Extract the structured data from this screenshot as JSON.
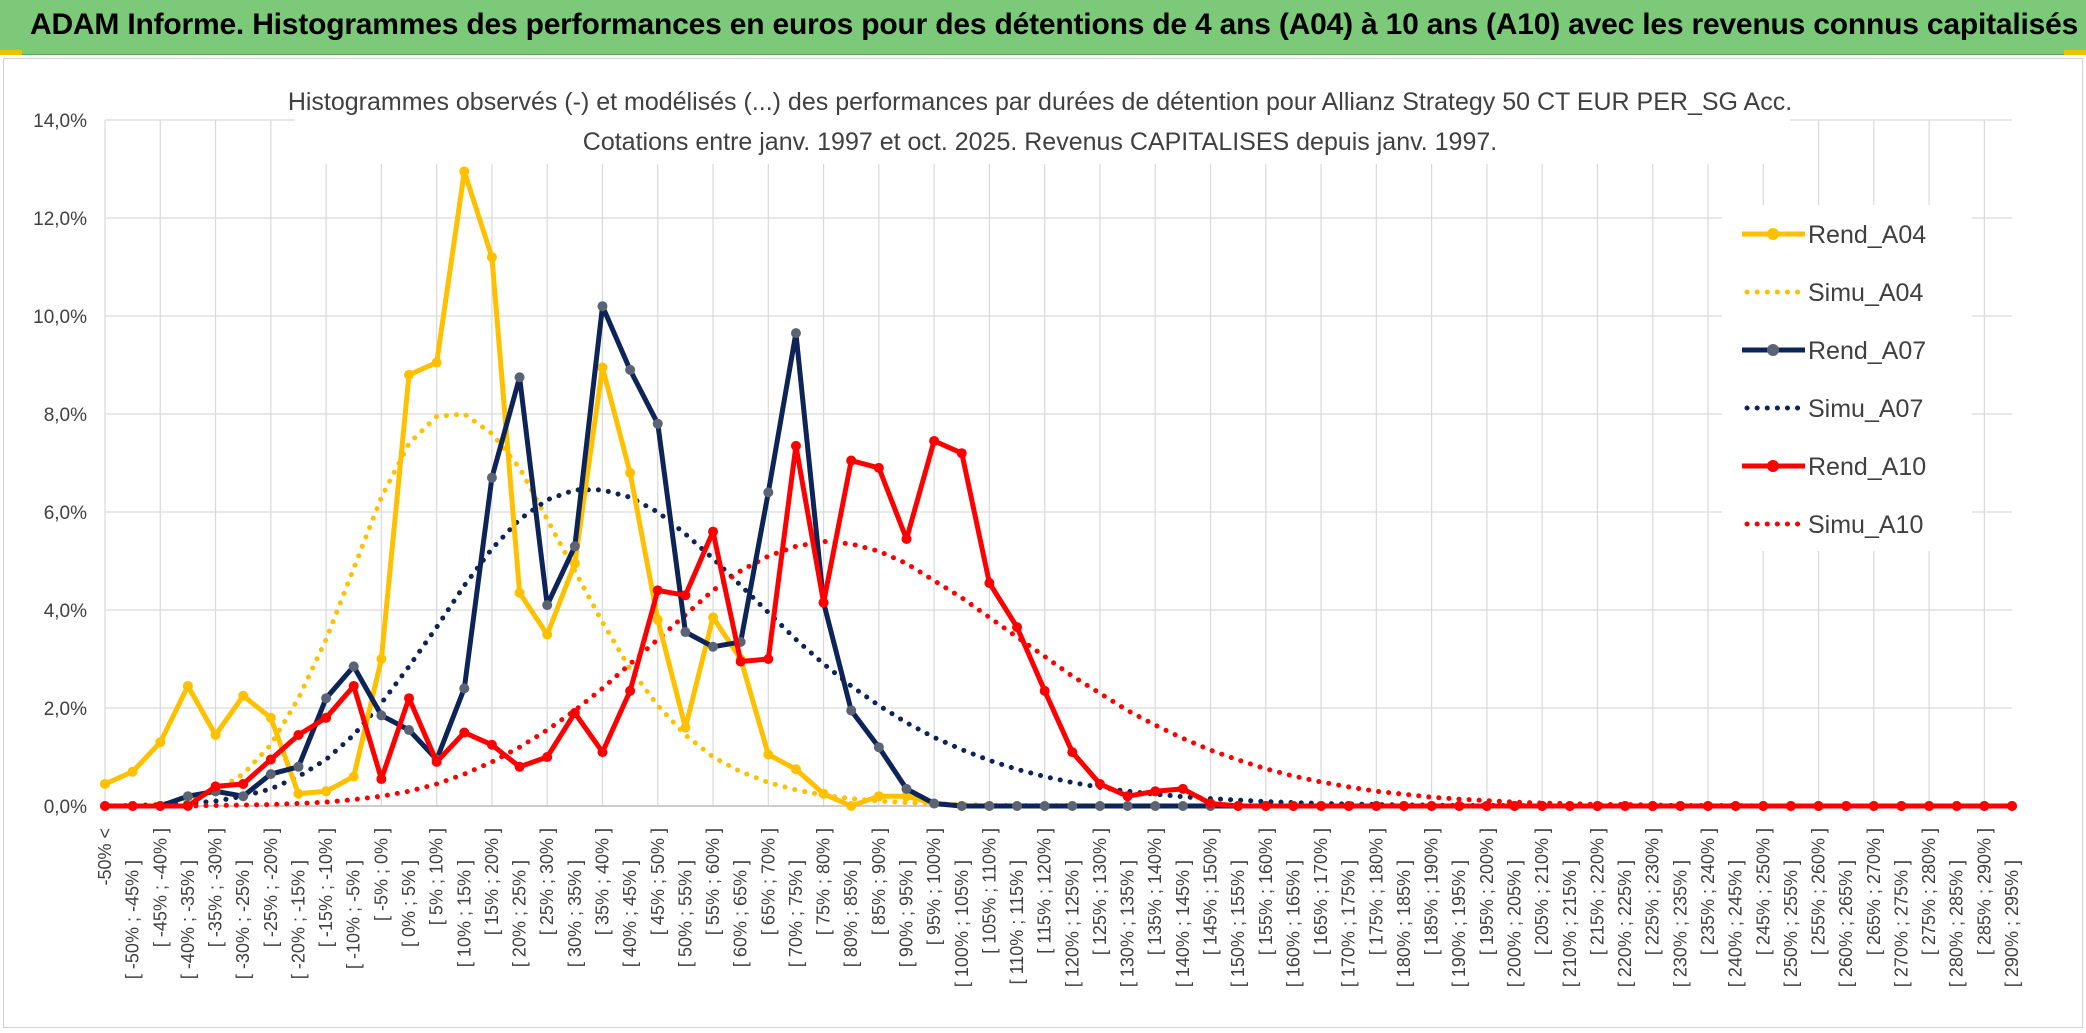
{
  "header": {
    "title": "ADAM Informe. Histogrammes des performances en euros pour des détentions de 4 ans (A04) à 10 ans (A10) avec les revenus connus capitalisés"
  },
  "chart_data": {
    "type": "line",
    "title": "Histogrammes observés (-) et modélisés (...) des performances par durées de détention pour Allianz Strategy 50 CT EUR PER_SG Acc.",
    "subtitle": "Cotations entre janv. 1997 et oct. 2025. Revenus CAPITALISES depuis janv. 1997.",
    "xlabel": "",
    "ylabel": "",
    "ylim": [
      0,
      14
    ],
    "yticks": [
      "0,0%",
      "2,0%",
      "4,0%",
      "6,0%",
      "8,0%",
      "10,0%",
      "12,0%",
      "14,0%"
    ],
    "grid": true,
    "legend_position": "right",
    "categories": [
      "-50% <",
      "[ -50% ; -45% ]",
      "[ -45% ; -40% ]",
      "[ -40% ; -35% ]",
      "[ -35% ; -30% ]",
      "[ -30% ; -25% ]",
      "[ -25% ; -20% ]",
      "[ -20% ; -15% ]",
      "[ -15% ; -10% ]",
      "[ -10% ; -5% ]",
      "[ -5% ; 0% ]",
      "[ 0% ; 5% ]",
      "[ 5% ; 10% ]",
      "[ 10% ; 15% ]",
      "[ 15% ; 20% ]",
      "[ 20% ; 25% ]",
      "[ 25% ; 30% ]",
      "[ 30% ; 35% ]",
      "[ 35% ; 40% ]",
      "[ 40% ; 45% ]",
      "[ 45% ; 50% ]",
      "[ 50% ; 55% ]",
      "[ 55% ; 60% ]",
      "[ 60% ; 65% ]",
      "[ 65% ; 70% ]",
      "[ 70% ; 75% ]",
      "[ 75% ; 80% ]",
      "[ 80% ; 85% ]",
      "[ 85% ; 90% ]",
      "[ 90% ; 95% ]",
      "[ 95% ; 100% ]",
      "[ 100% ; 105% ]",
      "[ 105% ; 110% ]",
      "[ 110% ; 115% ]",
      "[ 115% ; 120% ]",
      "[ 120% ; 125% ]",
      "[ 125% ; 130% ]",
      "[ 130% ; 135% ]",
      "[ 135% ; 140% ]",
      "[ 140% ; 145% ]",
      "[ 145% ; 150% ]",
      "[ 150% ; 155% ]",
      "[ 155% ; 160% ]",
      "[ 160% ; 165% ]",
      "[ 165% ; 170% ]",
      "[ 170% ; 175% ]",
      "[ 175% ; 180% ]",
      "[ 180% ; 185% ]",
      "[ 185% ; 190% ]",
      "[ 190% ; 195% ]",
      "[ 195% ; 200% ]",
      "[ 200% ; 205% ]",
      "[ 205% ; 210% ]",
      "[ 210% ; 215% ]",
      "[ 215% ; 220% ]",
      "[ 220% ; 225% ]",
      "[ 225% ; 230% ]",
      "[ 230% ; 235% ]",
      "[ 235% ; 240% ]",
      "[ 240% ; 245% ]",
      "[ 245% ; 250% ]",
      "[ 250% ; 255% ]",
      "[ 255% ; 260% ]",
      "[ 260% ; 265% ]",
      "[ 265% ; 270% ]",
      "[ 270% ; 275% ]",
      "[ 275% ; 280% ]",
      "[ 280% ; 285% ]",
      "[ 285% ; 290% ]",
      "[ 290% ; 295% ]"
    ],
    "series": [
      {
        "name": "Rend_A04",
        "color": "#ffc000",
        "style": "solid-markers",
        "values": [
          0.45,
          0.7,
          1.3,
          2.45,
          1.45,
          2.25,
          1.8,
          0.25,
          0.3,
          0.6,
          3.0,
          8.8,
          9.05,
          12.95,
          11.2,
          4.35,
          3.5,
          4.95,
          8.95,
          6.8,
          3.8,
          1.6,
          3.85,
          3.0,
          1.05,
          0.75,
          0.25,
          0.0,
          0.2,
          0.2,
          0.05,
          0,
          0,
          0,
          0,
          0,
          0,
          0,
          0,
          0,
          0,
          0,
          0,
          0,
          0,
          0,
          0,
          0,
          0,
          0,
          0,
          0,
          0,
          0,
          0,
          0,
          0,
          0,
          0,
          0,
          0,
          0,
          0,
          0,
          0,
          0,
          0,
          0,
          0,
          0
        ]
      },
      {
        "name": "Simu_A04",
        "color": "#ffc000",
        "style": "dotted",
        "values": [
          0.0,
          0.01,
          0.04,
          0.12,
          0.3,
          0.65,
          1.25,
          2.2,
          3.4,
          4.85,
          6.3,
          7.4,
          7.95,
          8.0,
          7.6,
          6.9,
          5.85,
          4.8,
          3.75,
          2.8,
          2.05,
          1.45,
          1.0,
          0.7,
          0.48,
          0.33,
          0.22,
          0.15,
          0.1,
          0.07,
          0.05,
          0.03,
          0.02,
          0.01,
          0.01,
          0.01,
          0,
          0,
          0,
          0,
          0,
          0,
          0,
          0,
          0,
          0,
          0,
          0,
          0,
          0,
          0,
          0,
          0,
          0,
          0,
          0,
          0,
          0,
          0,
          0,
          0,
          0,
          0,
          0,
          0,
          0,
          0,
          0,
          0,
          0
        ]
      },
      {
        "name": "Rend_A07",
        "color": "#0d2458",
        "style": "solid-markers",
        "values": [
          0,
          0,
          0,
          0.2,
          0.3,
          0.2,
          0.65,
          0.8,
          2.2,
          2.85,
          1.85,
          1.55,
          0.95,
          2.4,
          6.7,
          8.75,
          4.1,
          5.3,
          10.2,
          8.9,
          7.8,
          3.55,
          3.25,
          3.35,
          6.4,
          9.65,
          4.15,
          1.95,
          1.2,
          0.35,
          0.05,
          0,
          0,
          0,
          0,
          0,
          0,
          0,
          0,
          0,
          0,
          0,
          0,
          0,
          0,
          0,
          0,
          0,
          0,
          0,
          0,
          0,
          0,
          0,
          0,
          0,
          0,
          0,
          0,
          0,
          0,
          0,
          0,
          0,
          0,
          0,
          0,
          0,
          0,
          0
        ]
      },
      {
        "name": "Simu_A07",
        "color": "#0d2458",
        "style": "dotted",
        "values": [
          0,
          0.01,
          0.02,
          0.05,
          0.1,
          0.2,
          0.35,
          0.6,
          0.95,
          1.45,
          2.1,
          2.85,
          3.65,
          4.5,
          5.25,
          5.85,
          6.25,
          6.45,
          6.45,
          6.3,
          6.0,
          5.55,
          5.05,
          4.5,
          3.95,
          3.4,
          2.9,
          2.45,
          2.05,
          1.7,
          1.4,
          1.15,
          0.93,
          0.75,
          0.6,
          0.48,
          0.38,
          0.3,
          0.24,
          0.19,
          0.15,
          0.12,
          0.09,
          0.07,
          0.05,
          0.04,
          0.03,
          0.02,
          0.02,
          0.01,
          0.01,
          0.01,
          0,
          0,
          0,
          0,
          0,
          0,
          0,
          0,
          0,
          0,
          0,
          0,
          0,
          0,
          0,
          0,
          0,
          0
        ]
      },
      {
        "name": "Rend_A10",
        "color": "#ff0000",
        "style": "solid-markers",
        "values": [
          0,
          0,
          0,
          0,
          0.4,
          0.45,
          0.95,
          1.45,
          1.8,
          2.45,
          0.55,
          2.2,
          0.9,
          1.5,
          1.25,
          0.8,
          1.0,
          1.9,
          1.1,
          2.35,
          4.4,
          4.3,
          5.6,
          2.95,
          3.0,
          7.35,
          4.15,
          7.05,
          6.9,
          5.45,
          7.45,
          7.2,
          4.55,
          3.65,
          2.35,
          1.1,
          0.45,
          0.2,
          0.3,
          0.35,
          0.05,
          0,
          0,
          0,
          0,
          0,
          0,
          0,
          0,
          0,
          0,
          0,
          0,
          0,
          0,
          0,
          0,
          0,
          0,
          0,
          0,
          0,
          0,
          0,
          0,
          0,
          0,
          0,
          0,
          0
        ]
      },
      {
        "name": "Simu_A10",
        "color": "#ff0000",
        "style": "dotted",
        "values": [
          0,
          0,
          0,
          0,
          0.01,
          0.02,
          0.03,
          0.05,
          0.08,
          0.13,
          0.2,
          0.3,
          0.45,
          0.65,
          0.9,
          1.2,
          1.55,
          1.95,
          2.4,
          2.9,
          3.4,
          3.9,
          4.4,
          4.8,
          5.1,
          5.3,
          5.4,
          5.35,
          5.2,
          4.95,
          4.6,
          4.25,
          3.85,
          3.45,
          3.05,
          2.65,
          2.3,
          1.95,
          1.65,
          1.38,
          1.14,
          0.94,
          0.76,
          0.61,
          0.49,
          0.39,
          0.3,
          0.24,
          0.18,
          0.14,
          0.11,
          0.08,
          0.06,
          0.05,
          0.03,
          0.03,
          0.02,
          0.01,
          0.01,
          0.01,
          0,
          0,
          0,
          0,
          0,
          0,
          0,
          0,
          0,
          0
        ]
      }
    ]
  }
}
